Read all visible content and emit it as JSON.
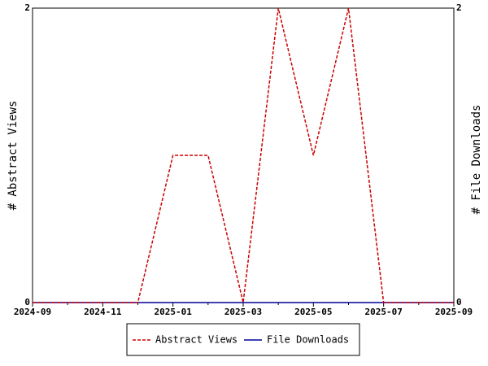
{
  "chart_data": {
    "type": "line",
    "categories": [
      "2024-09",
      null,
      "2024-11",
      null,
      "2025-01",
      null,
      "2025-03",
      null,
      "2025-05",
      null,
      "2025-07",
      null,
      "2025-09"
    ],
    "series": [
      {
        "name": "Abstract Views",
        "color": "#cc0000",
        "dash": true,
        "values": [
          0,
          0,
          0,
          0,
          1,
          1,
          0,
          2,
          1,
          2,
          0,
          0,
          0
        ]
      },
      {
        "name": "File Downloads",
        "color": "#000099",
        "dash": false,
        "axis": "y2",
        "values": [
          0,
          0,
          0,
          0,
          0,
          0,
          0,
          0,
          0,
          0,
          0,
          0,
          0
        ]
      }
    ],
    "ylabel": "# Abstract Views",
    "y2label": "# File Downloads",
    "ylim": [
      0,
      2
    ],
    "yticks": [
      0,
      2
    ],
    "y2lim": [
      0,
      2
    ],
    "y2ticks": [
      0,
      2
    ],
    "legend": "bottom"
  }
}
